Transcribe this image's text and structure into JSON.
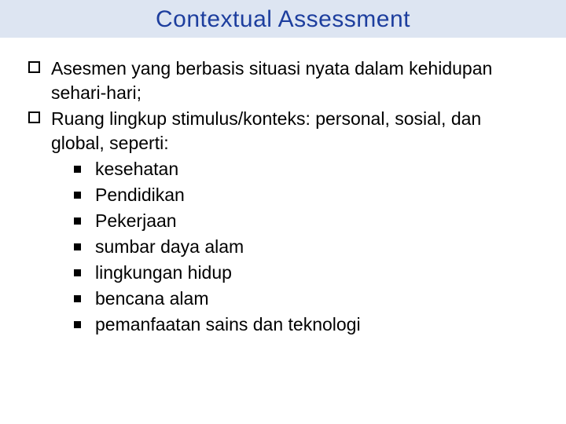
{
  "slide": {
    "title": "Contextual Assessment",
    "title_bg": "#dde5f2",
    "title_color": "#1d3e9e",
    "body_color": "#000000",
    "body_fontsize": 23,
    "title_fontsize": 30,
    "bullets": [
      {
        "text": "Asesmen yang berbasis situasi nyata dalam kehidupan sehari-hari;"
      },
      {
        "text": "Ruang lingkup stimulus/konteks: personal, sosial, dan global, seperti:",
        "subitems": [
          "kesehatan",
          "Pendidikan",
          "Pekerjaan",
          "sumbar daya alam",
          "lingkungan hidup",
          "bencana alam",
          "pemanfaatan sains dan teknologi"
        ]
      }
    ]
  }
}
